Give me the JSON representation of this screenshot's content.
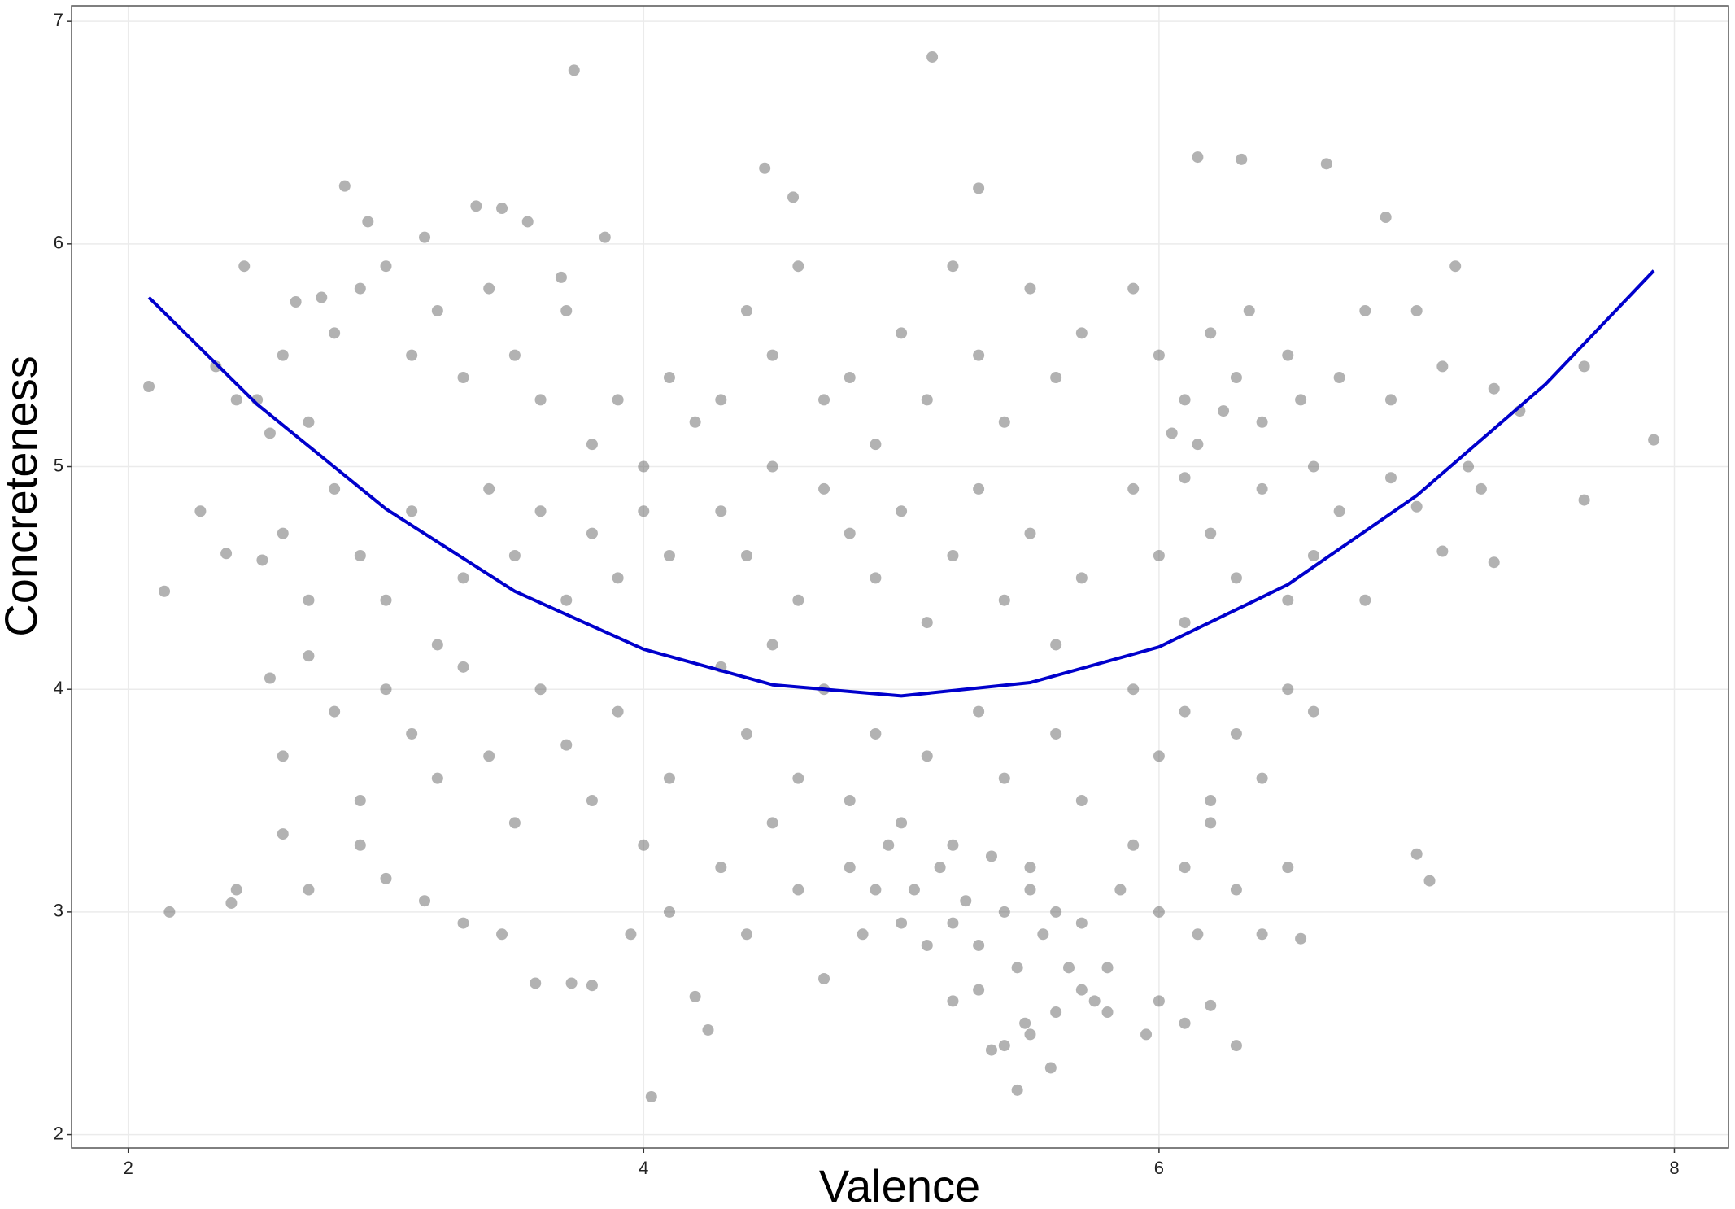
{
  "chart_data": {
    "type": "scatter",
    "x_label": "Valence",
    "y_label": "Concreteness",
    "xlim": [
      1.78,
      8.21
    ],
    "ylim": [
      1.94,
      7.07
    ],
    "xticks": [
      2,
      4,
      6,
      8
    ],
    "yticks": [
      2,
      3,
      4,
      5,
      6,
      7
    ],
    "grid": true,
    "series": [
      {
        "type": "scatter",
        "color": "#555555",
        "x": [
          2.5,
          2.6,
          2.7,
          2.8,
          2.9,
          3.0,
          3.1,
          3.2,
          3.3,
          3.4,
          3.5,
          3.6,
          3.7,
          3.8,
          3.9,
          4.0,
          4.1,
          4.2,
          2.6,
          2.7,
          2.8,
          2.9,
          3.0,
          3.1,
          3.2,
          3.3,
          3.4,
          3.5,
          3.6,
          3.7,
          3.8,
          3.9,
          4.0,
          4.1,
          2.55,
          2.6,
          2.7,
          2.8,
          2.9,
          3.0,
          3.1,
          3.2,
          3.3,
          3.4,
          3.5,
          3.6,
          3.7,
          3.8,
          3.9,
          4.0,
          4.1,
          2.6,
          2.7,
          2.9,
          3.0,
          3.15,
          3.3,
          3.45,
          3.58,
          3.72,
          3.8,
          3.95,
          4.1,
          4.2,
          4.25,
          2.4,
          2.42,
          2.52,
          2.38,
          2.34,
          2.42,
          2.55,
          2.65,
          2.75,
          2.93,
          3.15,
          3.55,
          3.68,
          3.85,
          5.12,
          3.73,
          2.08,
          2.14,
          2.16,
          2.28,
          2.45,
          7.92,
          7.65,
          7.65,
          4.03,
          5.45,
          5.58,
          7.0,
          7.05,
          6.65,
          6.15,
          6.32,
          4.47,
          2.84,
          3.35,
          3.45,
          4.58,
          6.88,
          5.3,
          4.3,
          4.4,
          4.5,
          4.6,
          4.7,
          4.8,
          4.9,
          5.0,
          5.1,
          5.2,
          5.3,
          5.4,
          5.5,
          5.6,
          5.7,
          4.3,
          4.4,
          4.5,
          4.6,
          4.7,
          4.8,
          4.9,
          5.0,
          5.1,
          5.2,
          5.3,
          5.4,
          5.5,
          5.6,
          5.7,
          4.3,
          4.4,
          4.5,
          4.6,
          4.7,
          4.8,
          4.9,
          5.0,
          5.1,
          5.2,
          5.3,
          5.4,
          5.5,
          5.6,
          5.7,
          4.3,
          4.4,
          4.5,
          4.6,
          4.7,
          4.8,
          4.85,
          4.9,
          4.95,
          5.0,
          5.05,
          5.1,
          5.15,
          5.2,
          5.25,
          5.3,
          5.35,
          5.4,
          5.45,
          5.5,
          5.55,
          5.6,
          5.65,
          5.7,
          5.75,
          5.8,
          5.85,
          5.2,
          5.3,
          5.4,
          5.48,
          5.5,
          5.6,
          5.7,
          5.8,
          5.35,
          5.9,
          6.0,
          6.1,
          6.15,
          6.2,
          6.3,
          6.35,
          6.4,
          6.5,
          6.55,
          6.6,
          6.7,
          6.8,
          6.9,
          6.05,
          6.1,
          6.25,
          5.9,
          6.0,
          6.1,
          6.2,
          6.3,
          6.4,
          6.5,
          6.6,
          6.7,
          6.8,
          5.9,
          6.0,
          6.1,
          6.2,
          6.3,
          6.4,
          6.5,
          6.6,
          5.9,
          6.0,
          6.1,
          6.15,
          6.2,
          6.3,
          6.4,
          6.5,
          6.55,
          5.95,
          6.0,
          6.2,
          6.3,
          6.1,
          7.0,
          7.1,
          7.15,
          7.2,
          7.1,
          7.3,
          7.25,
          7.4,
          7.3,
          6.9,
          7.0
        ],
        "values": [
          5.3,
          5.5,
          5.2,
          5.6,
          5.8,
          5.9,
          5.5,
          5.7,
          5.4,
          5.8,
          5.5,
          5.3,
          5.7,
          5.1,
          5.3,
          5.0,
          5.4,
          5.2,
          4.7,
          4.4,
          4.9,
          4.6,
          4.4,
          4.8,
          4.2,
          4.5,
          4.9,
          4.6,
          4.8,
          4.4,
          4.7,
          4.5,
          4.8,
          4.6,
          4.05,
          3.7,
          4.15,
          3.9,
          3.5,
          4.0,
          3.8,
          3.6,
          4.1,
          3.7,
          3.4,
          4.0,
          3.75,
          3.5,
          3.9,
          3.3,
          3.6,
          3.35,
          3.1,
          3.3,
          3.15,
          3.05,
          2.95,
          2.9,
          2.68,
          2.68,
          2.67,
          2.9,
          3.0,
          2.62,
          2.47,
          3.04,
          3.1,
          4.58,
          4.61,
          5.45,
          5.3,
          5.15,
          5.74,
          5.76,
          6.1,
          6.03,
          6.1,
          5.85,
          6.03,
          6.84,
          6.78,
          5.36,
          4.44,
          3.0,
          4.8,
          5.9,
          5.12,
          4.85,
          5.45,
          2.17,
          2.2,
          2.3,
          3.26,
          3.14,
          6.36,
          6.39,
          6.38,
          6.34,
          6.26,
          6.17,
          6.16,
          6.21,
          6.12,
          6.25,
          5.3,
          5.7,
          5.5,
          5.9,
          5.3,
          5.4,
          5.1,
          5.6,
          5.3,
          5.9,
          5.5,
          5.2,
          5.8,
          5.4,
          5.6,
          4.8,
          4.6,
          5.0,
          4.4,
          4.9,
          4.7,
          4.5,
          4.8,
          4.3,
          4.6,
          4.9,
          4.4,
          4.7,
          4.2,
          4.5,
          4.1,
          3.8,
          4.2,
          3.6,
          4.0,
          3.5,
          3.8,
          3.4,
          3.7,
          3.3,
          3.9,
          3.6,
          3.2,
          3.8,
          3.5,
          3.2,
          2.9,
          3.4,
          3.1,
          2.7,
          3.2,
          2.9,
          3.1,
          3.3,
          2.95,
          3.1,
          2.85,
          3.2,
          2.95,
          3.05,
          2.85,
          3.25,
          3.0,
          2.75,
          3.1,
          2.9,
          3.0,
          2.75,
          2.95,
          2.6,
          2.75,
          3.1,
          2.6,
          2.65,
          2.4,
          2.5,
          2.45,
          2.55,
          2.65,
          2.55,
          2.38,
          5.8,
          5.5,
          5.3,
          5.1,
          5.6,
          5.4,
          5.7,
          5.2,
          5.5,
          5.3,
          5.0,
          5.4,
          5.7,
          5.3,
          5.15,
          4.95,
          5.25,
          4.9,
          4.6,
          4.3,
          4.7,
          4.5,
          4.9,
          4.4,
          4.6,
          4.8,
          4.4,
          4.0,
          3.7,
          3.9,
          3.5,
          3.8,
          3.6,
          4.0,
          3.9,
          3.3,
          3.0,
          3.2,
          2.9,
          3.4,
          3.1,
          2.9,
          3.2,
          2.88,
          2.45,
          2.6,
          2.58,
          2.4,
          2.5,
          5.7,
          5.45,
          5.9,
          5.0,
          4.62,
          4.57,
          4.9,
          5.25,
          5.35,
          4.95,
          4.82
        ]
      },
      {
        "type": "line",
        "color": "#0000cc",
        "x": [
          2.08,
          2.5,
          3.0,
          3.5,
          4.0,
          4.5,
          5.0,
          5.5,
          6.0,
          6.5,
          7.0,
          7.5,
          7.92
        ],
        "values": [
          5.76,
          5.28,
          4.81,
          4.44,
          4.18,
          4.02,
          3.97,
          4.03,
          4.19,
          4.47,
          4.87,
          5.37,
          5.88
        ]
      }
    ]
  }
}
